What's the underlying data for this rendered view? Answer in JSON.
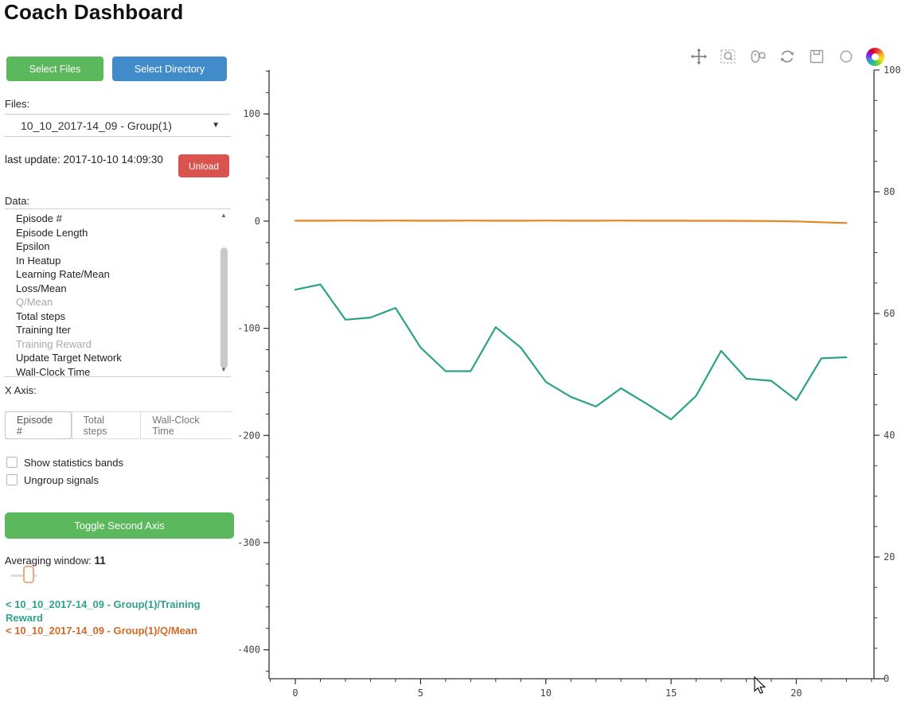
{
  "app": {
    "title": "Coach Dashboard"
  },
  "sidebar": {
    "select_files_button": "Select Files",
    "select_directory_button": "Select Directory",
    "files_label": "Files:",
    "files_selected_option": "10_10_2017-14_09 - Group(1)",
    "last_update": "last update: 2017-10-10 14:09:30",
    "unload_button": "Unload",
    "data_label": "Data:",
    "data_items": [
      {
        "label": "Episode #",
        "dimmed": false
      },
      {
        "label": "Episode Length",
        "dimmed": false
      },
      {
        "label": "Epsilon",
        "dimmed": false
      },
      {
        "label": "In Heatup",
        "dimmed": false
      },
      {
        "label": "Learning Rate/Mean",
        "dimmed": false
      },
      {
        "label": "Loss/Mean",
        "dimmed": false
      },
      {
        "label": "Q/Mean",
        "dimmed": true
      },
      {
        "label": "Total steps",
        "dimmed": false
      },
      {
        "label": "Training Iter",
        "dimmed": false
      },
      {
        "label": "Training Reward",
        "dimmed": true
      },
      {
        "label": "Update Target Network",
        "dimmed": false
      },
      {
        "label": "Wall-Clock Time",
        "dimmed": false
      }
    ],
    "x_axis_label": "X Axis:",
    "x_axis_options": [
      {
        "label": "Episode #",
        "selected": true
      },
      {
        "label": "Total steps",
        "selected": false
      },
      {
        "label": "Wall-Clock Time",
        "selected": false
      }
    ],
    "checkboxes": [
      {
        "label": "Show statistics bands",
        "checked": false
      },
      {
        "label": "Ungroup signals",
        "checked": false
      }
    ],
    "toggle_second_axis_button": "Toggle Second Axis",
    "averaging_window_label": "Averaging window:",
    "averaging_window_value": "11",
    "legend": [
      {
        "label": "< 10_10_2017-14_09 - Group(1)/Training Reward",
        "color": "#2fa28d"
      },
      {
        "label": "< 10_10_2017-14_09 - Group(1)/Q/Mean",
        "color": "#cf6a28"
      }
    ]
  },
  "toolbar": {
    "tools": [
      {
        "name": "pan",
        "active": true
      },
      {
        "name": "box-zoom",
        "active": false
      },
      {
        "name": "wheel-zoom",
        "active": false
      },
      {
        "name": "reset",
        "active": false
      },
      {
        "name": "save",
        "active": false
      },
      {
        "name": "hover",
        "active": true
      }
    ],
    "active_color": "#35b0c0"
  },
  "chart_data": {
    "type": "line",
    "title": "",
    "xlabel": "",
    "ylabel": "",
    "grid": false,
    "legend_position": "sidebar",
    "x": [
      0,
      1,
      2,
      3,
      4,
      5,
      6,
      7,
      8,
      9,
      10,
      11,
      12,
      13,
      14,
      15,
      16,
      17,
      18,
      19,
      20,
      21,
      22
    ],
    "series": [
      {
        "name": "10_10_2017-14_09 - Group(1)/Training Reward",
        "color": "#2aa385",
        "axis": "left",
        "values": [
          -64,
          -59,
          -92,
          -90,
          -81,
          -118,
          -140,
          -140,
          -99,
          -118,
          -150,
          -164,
          -173,
          -156,
          -170,
          -185,
          -163,
          -121,
          -147,
          -149,
          -167,
          -128,
          -127
        ]
      },
      {
        "name": "10_10_2017-14_09 - Group(1)/Q/Mean",
        "color": "#e8821e",
        "axis": "left",
        "values": [
          0.4,
          0.4,
          0.5,
          0.4,
          0.5,
          0.4,
          0.4,
          0.5,
          0.4,
          0.4,
          0.5,
          0.4,
          0.4,
          0.5,
          0.4,
          0.4,
          0.3,
          0.3,
          0.2,
          0.1,
          -0.3,
          -1.0,
          -1.8
        ]
      }
    ],
    "x_axis": {
      "ticks": [
        0,
        5,
        10,
        15,
        20
      ],
      "minor_step": 1,
      "range": [
        -1.05,
        23.1
      ]
    },
    "left_axis": {
      "ticks": [
        100,
        0,
        -100,
        -200,
        -300,
        -400
      ],
      "minor_step": 20,
      "range": [
        -427,
        141
      ]
    },
    "right_axis": {
      "ticks": [
        100,
        80,
        60,
        40,
        20,
        0
      ],
      "minor_step": 5,
      "range": [
        0,
        100
      ]
    }
  }
}
